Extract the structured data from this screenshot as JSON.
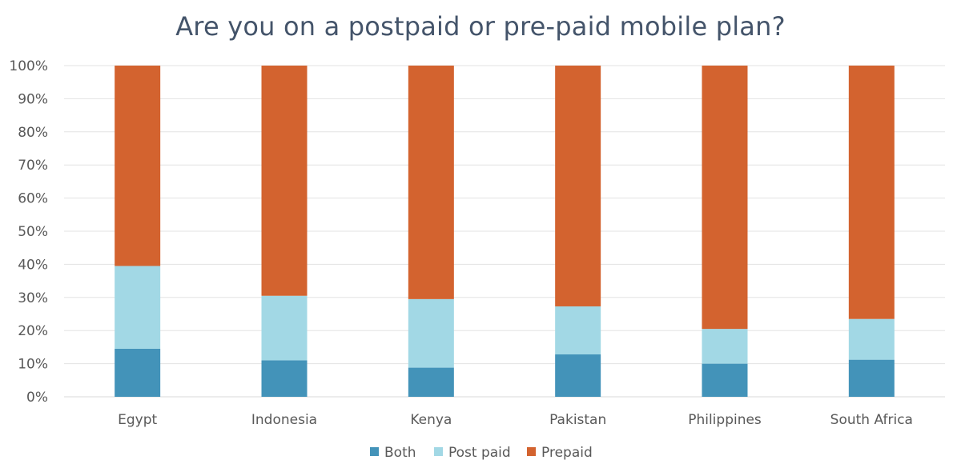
{
  "chart_data": {
    "type": "bar",
    "stacked": true,
    "title": "Are you on a postpaid or pre-paid mobile plan?",
    "categories": [
      "Egypt",
      "Indonesia",
      "Kenya",
      "Pakistan",
      "Philippines",
      "South Africa"
    ],
    "series": [
      {
        "name": "Both",
        "color": "#4393b9",
        "values": [
          14.5,
          11,
          8.8,
          12.8,
          10,
          11.2
        ]
      },
      {
        "name": "Post paid",
        "color": "#a2d8e5",
        "values": [
          25,
          19.5,
          20.7,
          14.5,
          10.5,
          12.3
        ]
      },
      {
        "name": "Prepaid",
        "color": "#d3632f",
        "values": [
          60.5,
          69.5,
          70.5,
          72.7,
          79.5,
          76.5
        ]
      }
    ],
    "yticks": [
      "0%",
      "10%",
      "20%",
      "30%",
      "40%",
      "50%",
      "60%",
      "70%",
      "80%",
      "90%",
      "100%"
    ],
    "ylim": [
      0,
      100
    ],
    "grid": true,
    "legend_position": "bottom"
  }
}
